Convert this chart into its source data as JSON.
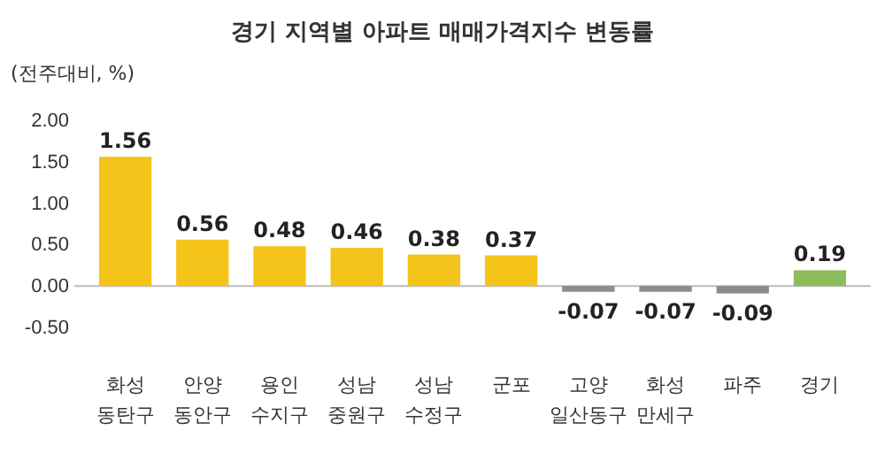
{
  "chart_data": {
    "type": "bar",
    "title": "경기 지역별 아파트 매매가격지수 변동률",
    "ylabel": "(전주대비, %)",
    "categories": [
      "화성 동탄구",
      "안양 동안구",
      "용인 수지구",
      "성남 중원구",
      "성남 수정구",
      "군포",
      "고양 일산동구",
      "화성 만세구",
      "파주",
      "경기"
    ],
    "values": [
      1.56,
      0.56,
      0.48,
      0.46,
      0.38,
      0.37,
      -0.07,
      -0.07,
      -0.09,
      0.19
    ],
    "value_labels": [
      "1.56",
      "0.56",
      "0.48",
      "0.46",
      "0.38",
      "0.37",
      "-0.07",
      "-0.07",
      "-0.09",
      "0.19"
    ],
    "colors": [
      "#f5c41a",
      "#f5c41a",
      "#f5c41a",
      "#f5c41a",
      "#f5c41a",
      "#f5c41a",
      "#8c8c8c",
      "#8c8c8c",
      "#8c8c8c",
      "#8fbc5a"
    ],
    "ylim": [
      -0.5,
      2
    ],
    "yticks": [
      {
        "value": -0.5,
        "label": "-0.50"
      },
      {
        "value": 0,
        "label": "0.00"
      },
      {
        "value": 0.5,
        "label": "0.50"
      },
      {
        "value": 1,
        "label": "1.00"
      },
      {
        "value": 1.5,
        "label": "1.50"
      },
      {
        "value": 2,
        "label": "2.00"
      }
    ]
  }
}
